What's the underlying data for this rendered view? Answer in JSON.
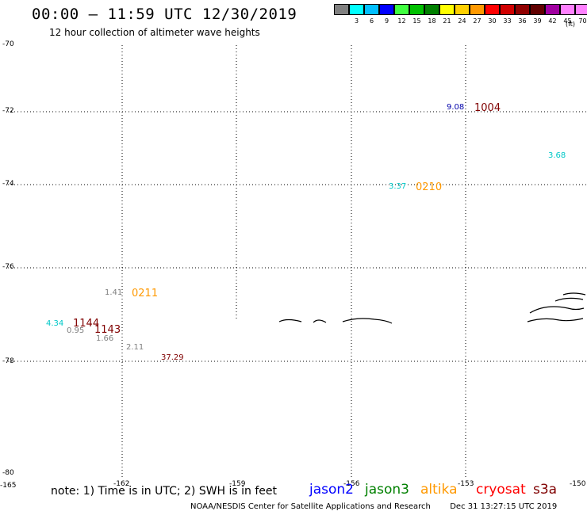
{
  "header": {
    "title": "00:00 — 11:59 UTC 12/30/2019",
    "subtitle": "12 hour collection of altimeter wave heights"
  },
  "legend": {
    "colors": [
      "#808080",
      "#00ffff",
      "#00bfff",
      "#0000ff",
      "#40ff40",
      "#00c000",
      "#008000",
      "#ffff00",
      "#ffd000",
      "#ff9900",
      "#ff0000",
      "#d00000",
      "#900000",
      "#600000",
      "#a000a0",
      "#ff80ff",
      "#ff80ff",
      "#000000"
    ],
    "labels": [
      "3",
      "6",
      "9",
      "12",
      "15",
      "18",
      "21",
      "24",
      "27",
      "30",
      "33",
      "36",
      "39",
      "42",
      "45",
      "70"
    ],
    "unit": "(ft)"
  },
  "axes": {
    "lat_labels": [
      "-70",
      "-72",
      "-74",
      "-76",
      "-78",
      "-80"
    ],
    "lon_labels": [
      "-165",
      "-162",
      "-159",
      "-156",
      "-153",
      "-150"
    ]
  },
  "observations": [
    {
      "text": "9.08",
      "color": "#0000aa"
    },
    {
      "text": "1004",
      "color": "#800000"
    },
    {
      "text": "3.68",
      "color": "#00c8c8"
    },
    {
      "text": "3.37",
      "color": "#00c8c8"
    },
    {
      "text": "0210",
      "color": "#ff9900"
    },
    {
      "text": "1.41",
      "color": "#808080"
    },
    {
      "text": "0211",
      "color": "#ff9900"
    },
    {
      "text": "4.34",
      "color": "#00c8c8"
    },
    {
      "text": "1144",
      "color": "#800000"
    },
    {
      "text": "0.95",
      "color": "#808080"
    },
    {
      "text": "1143",
      "color": "#800000"
    },
    {
      "text": "1.66",
      "color": "#808080"
    },
    {
      "text": "2.11",
      "color": "#808080"
    },
    {
      "text": "37.29",
      "color": "#800000"
    }
  ],
  "footer": {
    "note": "note: 1) Time is in UTC; 2) SWH is in feet",
    "satellites": [
      {
        "name": "jason2",
        "color": "#0000ff"
      },
      {
        "name": "jason3",
        "color": "#008000"
      },
      {
        "name": "altika",
        "color": "#ff9900"
      },
      {
        "name": "cryosat",
        "color": "#ff0000"
      },
      {
        "name": "s3a",
        "color": "#800000"
      }
    ],
    "credit": "NOAA/NESDIS Center for Satellite Applications and Research",
    "timestamp": "Dec 31 13:27:15 UTC 2019"
  }
}
